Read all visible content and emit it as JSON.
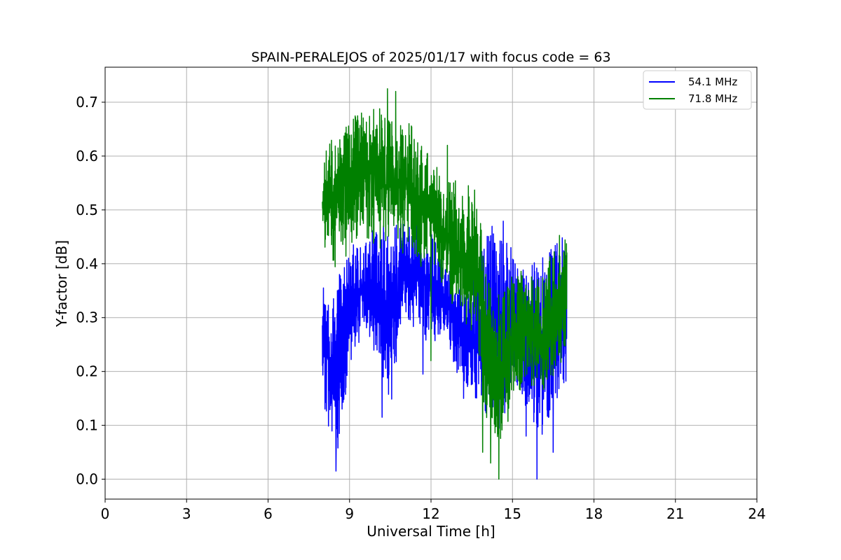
{
  "chart_data": {
    "type": "line",
    "title": "SPAIN-PERALEJOS of 2025/01/17 with focus code = 63",
    "xlabel": "Universal Time [h]",
    "ylabel": "Y-factor [dB]",
    "xlim": [
      0,
      24
    ],
    "ylim": [
      -0.037,
      0.765
    ],
    "xticks": [
      0,
      3,
      6,
      9,
      12,
      15,
      18,
      21,
      24
    ],
    "xtick_labels": [
      "0",
      "3",
      "6",
      "9",
      "12",
      "15",
      "18",
      "21",
      "24"
    ],
    "yticks": [
      0.0,
      0.1,
      0.2,
      0.3,
      0.4,
      0.5,
      0.6,
      0.7
    ],
    "ytick_labels": [
      "0.0",
      "0.1",
      "0.2",
      "0.3",
      "0.4",
      "0.5",
      "0.6",
      "0.7"
    ],
    "grid": true,
    "legend_position": "top-right",
    "series": [
      {
        "name": "54.1 MHz",
        "color": "#0000ff",
        "envelope": {
          "x": [
            8.0,
            8.3,
            8.6,
            9.0,
            9.5,
            10.0,
            10.5,
            11.0,
            11.5,
            12.0,
            12.5,
            13.0,
            13.5,
            13.9,
            14.3,
            14.7,
            15.0,
            15.5,
            16.0,
            16.5,
            17.0
          ],
          "low": [
            0.15,
            0.08,
            0.05,
            0.2,
            0.27,
            0.23,
            0.12,
            0.3,
            0.26,
            0.25,
            0.27,
            0.19,
            0.15,
            0.12,
            0.1,
            0.08,
            0.2,
            0.12,
            0.05,
            0.13,
            0.15
          ],
          "high": [
            0.42,
            0.32,
            0.4,
            0.45,
            0.44,
            0.48,
            0.47,
            0.5,
            0.49,
            0.46,
            0.4,
            0.37,
            0.38,
            0.44,
            0.48,
            0.48,
            0.43,
            0.38,
            0.44,
            0.48,
            0.44
          ]
        },
        "spikes": [
          [
            8.5,
            0.015
          ],
          [
            10.2,
            0.115
          ],
          [
            11.7,
            0.195
          ],
          [
            13.2,
            0.15
          ],
          [
            14.6,
            0.115
          ],
          [
            15.5,
            0.08
          ],
          [
            15.9,
            0.0
          ],
          [
            16.5,
            0.05
          ]
        ]
      },
      {
        "name": "71.8 MHz",
        "color": "#008000",
        "envelope": {
          "x": [
            8.0,
            8.3,
            8.6,
            9.0,
            9.5,
            10.0,
            10.5,
            11.0,
            11.5,
            12.0,
            12.5,
            13.0,
            13.5,
            13.8,
            14.0,
            14.3,
            14.7,
            15.0,
            15.5,
            16.0,
            16.5,
            17.0
          ],
          "low": [
            0.44,
            0.4,
            0.38,
            0.43,
            0.46,
            0.42,
            0.44,
            0.41,
            0.4,
            0.38,
            0.34,
            0.31,
            0.26,
            0.22,
            0.1,
            0.07,
            0.06,
            0.15,
            0.17,
            0.14,
            0.17,
            0.2
          ],
          "high": [
            0.6,
            0.63,
            0.66,
            0.68,
            0.68,
            0.7,
            0.69,
            0.67,
            0.65,
            0.62,
            0.58,
            0.55,
            0.56,
            0.5,
            0.4,
            0.33,
            0.36,
            0.38,
            0.39,
            0.37,
            0.45,
            0.48
          ]
        },
        "spikes": [
          [
            10.4,
            0.725
          ],
          [
            10.7,
            0.72
          ],
          [
            12.0,
            0.69
          ],
          [
            12.0,
            0.22
          ],
          [
            12.6,
            0.62
          ],
          [
            13.9,
            0.05
          ],
          [
            14.2,
            0.03
          ],
          [
            14.5,
            0.0
          ]
        ]
      }
    ]
  }
}
